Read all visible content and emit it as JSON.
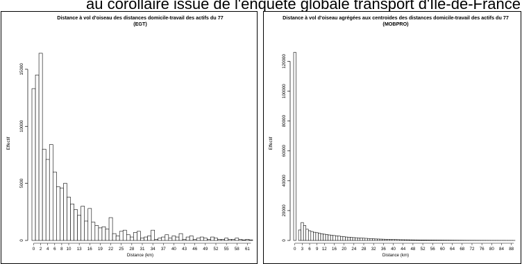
{
  "page": {
    "title_fragment": "au corollaire issue de l'enquête globale transport d'Ile-de-France"
  },
  "chart_data": [
    {
      "type": "bar",
      "title": "Distance à vol d'oiseau des distances domicile-travail des actifs du 77",
      "subtitle": "(EGT)",
      "xlabel": "Distance (km)",
      "ylabel": "Effectif",
      "ylim": [
        0,
        17000
      ],
      "yticks": [
        0,
        5000,
        10000,
        15000
      ],
      "xtick_labels": [
        "0",
        "2",
        "4",
        "6",
        "8",
        "10",
        "13",
        "16",
        "19",
        "22",
        "25",
        "28",
        "31",
        "34",
        "37",
        "40",
        "43",
        "46",
        "49",
        "52",
        "55",
        "58",
        "61"
      ],
      "categories": [
        "0",
        "1",
        "2",
        "3",
        "4",
        "5",
        "6",
        "7",
        "8",
        "9",
        "10",
        "11",
        "12",
        "13",
        "14",
        "15",
        "16",
        "17",
        "18",
        "19",
        "20",
        "21",
        "22",
        "23",
        "24",
        "25",
        "26",
        "27",
        "28",
        "29",
        "30",
        "31",
        "32",
        "33",
        "34",
        "35",
        "36",
        "37",
        "38",
        "39",
        "40",
        "41",
        "42",
        "43",
        "44",
        "45",
        "46",
        "47",
        "48",
        "49",
        "50",
        "51",
        "52",
        "53",
        "54",
        "55",
        "56",
        "57",
        "58",
        "59",
        "60",
        "61",
        "62"
      ],
      "values": [
        13300,
        14500,
        16400,
        8000,
        7100,
        8400,
        6000,
        4700,
        4600,
        5000,
        3800,
        3200,
        2700,
        2200,
        3000,
        1700,
        2800,
        1600,
        1300,
        1100,
        1200,
        1000,
        2000,
        600,
        400,
        800,
        900,
        500,
        300,
        700,
        800,
        200,
        300,
        400,
        900,
        100,
        200,
        300,
        500,
        200,
        400,
        300,
        600,
        100,
        300,
        400,
        100,
        200,
        300,
        200,
        100,
        300,
        200,
        100,
        100,
        200,
        100,
        100,
        200,
        100,
        50,
        100,
        50
      ],
      "grid": false,
      "legend": "none"
    },
    {
      "type": "bar",
      "title": "Distance à vol d'oiseau agrégées aux centroides des distances domicile-travail des actifs du 77",
      "subtitle": "(MOBPRO)",
      "xlabel": "Distance (km)",
      "ylabel": "Effectif",
      "ylim": [
        0,
        130000
      ],
      "yticks": [
        0,
        20000,
        40000,
        60000,
        80000,
        100000,
        120000
      ],
      "xtick_labels": [
        "0",
        "3",
        "6",
        "9",
        "12",
        "16",
        "20",
        "24",
        "28",
        "32",
        "36",
        "40",
        "44",
        "48",
        "52",
        "56",
        "60",
        "64",
        "68",
        "72",
        "76",
        "80",
        "84",
        "88"
      ],
      "categories": [
        "0",
        "1",
        "2",
        "3",
        "4",
        "5",
        "6",
        "7",
        "8",
        "9",
        "10",
        "11",
        "12",
        "13",
        "14",
        "15",
        "16",
        "17",
        "18",
        "19",
        "20",
        "21",
        "22",
        "23",
        "24",
        "25",
        "26",
        "27",
        "28",
        "29",
        "30",
        "31",
        "32",
        "33",
        "34",
        "35",
        "36",
        "37",
        "38",
        "39",
        "40",
        "41",
        "42",
        "43",
        "44",
        "45",
        "46",
        "47",
        "48",
        "49",
        "50",
        "51",
        "52",
        "53",
        "54",
        "55",
        "56",
        "57",
        "58",
        "59",
        "60",
        "61",
        "62",
        "63",
        "64",
        "65",
        "66",
        "67",
        "68",
        "69",
        "70",
        "71",
        "72",
        "73",
        "74",
        "75",
        "76",
        "77",
        "78",
        "79",
        "80",
        "81",
        "82",
        "83",
        "84",
        "85",
        "86",
        "87",
        "88",
        "89"
      ],
      "values": [
        126000,
        0,
        7000,
        12000,
        10000,
        7500,
        6500,
        6000,
        5500,
        5200,
        4800,
        4500,
        4200,
        4000,
        3700,
        3500,
        3300,
        3100,
        2900,
        2700,
        2500,
        2300,
        2200,
        2000,
        1900,
        1800,
        1700,
        1600,
        1500,
        1400,
        1300,
        1200,
        1100,
        1000,
        950,
        900,
        850,
        800,
        750,
        700,
        650,
        600,
        550,
        500,
        480,
        450,
        430,
        400,
        380,
        360,
        340,
        320,
        300,
        280,
        260,
        250,
        240,
        230,
        220,
        210,
        200,
        190,
        180,
        170,
        160,
        150,
        140,
        130,
        120,
        110,
        100,
        100,
        90,
        90,
        80,
        80,
        70,
        70,
        60,
        60,
        50,
        50,
        50,
        40,
        40,
        40,
        30,
        30,
        30,
        20
      ],
      "grid": false,
      "legend": "none"
    }
  ]
}
